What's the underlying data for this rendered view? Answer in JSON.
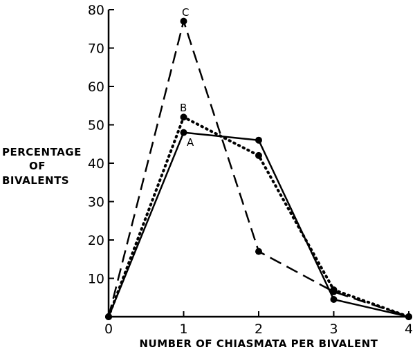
{
  "chart_data": {
    "type": "line",
    "title": "",
    "xlabel": "NUMBER OF CHIASMATA PER BIVALENT",
    "ylabel": [
      "PERCENTAGE",
      "OF",
      "BIVALENTS"
    ],
    "x": [
      0,
      1,
      2,
      3,
      4
    ],
    "xlim": [
      0,
      4
    ],
    "ylim": [
      0,
      80
    ],
    "xticks": [
      "0",
      "1",
      "2",
      "3",
      "4"
    ],
    "yticks": [
      "10",
      "20",
      "30",
      "40",
      "50",
      "60",
      "70",
      "80"
    ],
    "grid": false,
    "legend": "none",
    "series": [
      {
        "name": "A",
        "style": "solid",
        "values": [
          0,
          48,
          46,
          4.5,
          0
        ]
      },
      {
        "name": "B",
        "style": "dotted",
        "values": [
          0,
          52,
          42,
          7,
          0
        ]
      },
      {
        "name": "C",
        "style": "dashed",
        "values": [
          0,
          77,
          17,
          6.5,
          0
        ]
      }
    ],
    "colors": {
      "ink": "#000000",
      "background": "#ffffff"
    }
  }
}
